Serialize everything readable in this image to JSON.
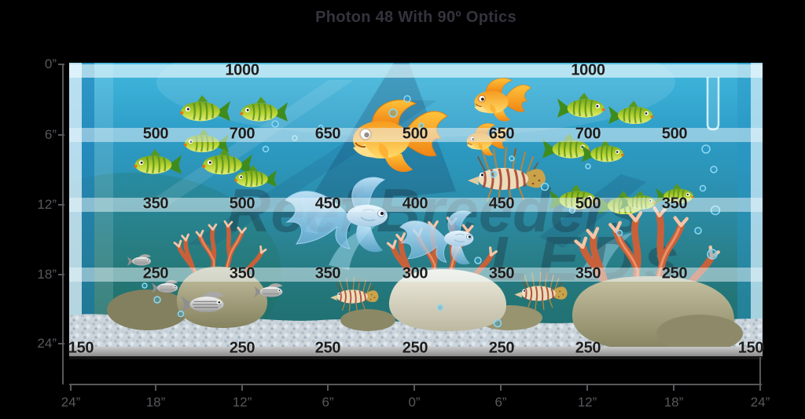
{
  "title": "Photon 48 With 90º Optics",
  "watermark": {
    "line1": "Reef Breeders",
    "line2": "LEDs"
  },
  "axes": {
    "depth_ticks": [
      "0”",
      "6”",
      "12”",
      "18”",
      "24”"
    ],
    "width_ticks": [
      "24”",
      "18”",
      "12”",
      "6”",
      "0”",
      "6”",
      "12”",
      "18”",
      "24”"
    ]
  },
  "colors": {
    "background": "#000000",
    "title_text": "#34343e",
    "axis": "#58585c",
    "par_text": "#1d1d1d",
    "band": "rgba(238,248,252,0.5)",
    "water_top": "#41b8de",
    "water_bottom": "#1e6b6d",
    "coral": "#c8603a",
    "gold_fish": "#f59b1e",
    "green_fish": "#a8c92e",
    "base_bar": "#a0a0a0"
  },
  "chart_data": {
    "type": "heatmap",
    "title": "Photon 48 With 90º Optics",
    "rows": [
      "0”",
      "6”",
      "12”",
      "18”",
      "24”"
    ],
    "columns": [
      "24”",
      "18”",
      "12”",
      "6”",
      "0”",
      "6”",
      "12”",
      "18”",
      "24”"
    ],
    "matrix": [
      [
        null,
        null,
        1000,
        null,
        null,
        null,
        1000,
        null,
        null
      ],
      [
        null,
        500,
        700,
        650,
        500,
        650,
        700,
        500,
        null
      ],
      [
        null,
        350,
        500,
        450,
        400,
        450,
        500,
        350,
        null
      ],
      [
        null,
        250,
        350,
        350,
        300,
        350,
        350,
        250,
        null
      ],
      [
        150,
        null,
        250,
        250,
        250,
        250,
        250,
        null,
        150
      ]
    ]
  }
}
